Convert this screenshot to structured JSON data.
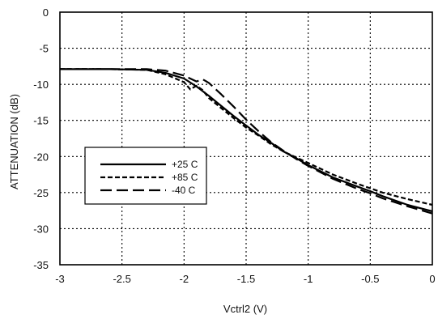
{
  "chart_data": {
    "type": "line",
    "title": "",
    "xlabel": "Vctrl2 (V)",
    "ylabel": "ATTENUATION (dB)",
    "xlim": [
      -3,
      0
    ],
    "ylim": [
      -35,
      0
    ],
    "xticks": [
      -3,
      -2.5,
      -2,
      -1.5,
      -1,
      -0.5,
      0
    ],
    "xtick_labels": [
      "-3",
      "-2.5",
      "-2",
      "-1.5",
      "-1",
      "-0.5",
      "0"
    ],
    "yticks": [
      0,
      -5,
      -10,
      -15,
      -20,
      -25,
      -30,
      -35
    ],
    "ytick_labels": [
      "0",
      "-5",
      "-10",
      "-15",
      "-20",
      "-25",
      "-30",
      "-35"
    ],
    "grid": true,
    "grid_style": "dotted",
    "legend_position": "left-middle",
    "series": [
      {
        "name": "+25 C",
        "dash": "solid",
        "x": [
          -3,
          -2.6,
          -2.3,
          -2.15,
          -2.0,
          -1.9,
          -1.8,
          -1.7,
          -1.6,
          -1.5,
          -1.4,
          -1.3,
          -1.2,
          -1.1,
          -1.0,
          -0.8,
          -0.6,
          -0.5,
          -0.4,
          -0.2,
          0
        ],
        "y": [
          -7.9,
          -7.9,
          -8.0,
          -8.4,
          -9.2,
          -10.3,
          -11.6,
          -13.0,
          -14.4,
          -15.7,
          -17.0,
          -18.1,
          -19.3,
          -20.2,
          -21.2,
          -22.9,
          -24.2,
          -24.8,
          -25.5,
          -26.7,
          -27.6
        ]
      },
      {
        "name": "+85 C",
        "dash": "short",
        "x": [
          -3,
          -2.6,
          -2.3,
          -2.15,
          -2.0,
          -1.95,
          -1.9,
          -1.85,
          -1.8,
          -1.7,
          -1.6,
          -1.5,
          -1.4,
          -1.3,
          -1.2,
          -1.1,
          -1.0,
          -0.8,
          -0.6,
          -0.5,
          -0.4,
          -0.2,
          0
        ],
        "y": [
          -7.9,
          -7.9,
          -8.0,
          -8.6,
          -9.7,
          -10.7,
          -10.2,
          -10.8,
          -11.9,
          -13.3,
          -14.7,
          -16.0,
          -17.1,
          -18.3,
          -19.3,
          -20.1,
          -20.9,
          -22.5,
          -23.8,
          -24.4,
          -25.0,
          -25.9,
          -26.7
        ]
      },
      {
        "name": "-40 C",
        "dash": "long",
        "x": [
          -3,
          -2.6,
          -2.3,
          -2.15,
          -2.0,
          -1.9,
          -1.85,
          -1.8,
          -1.7,
          -1.6,
          -1.5,
          -1.4,
          -1.3,
          -1.2,
          -1.1,
          -1.0,
          -0.8,
          -0.6,
          -0.5,
          -0.4,
          -0.2,
          0
        ],
        "y": [
          -7.9,
          -7.9,
          -7.9,
          -8.1,
          -8.8,
          -9.6,
          -9.3,
          -9.8,
          -11.4,
          -13.1,
          -14.9,
          -16.5,
          -18.0,
          -19.2,
          -20.3,
          -21.3,
          -23.1,
          -24.5,
          -25.1,
          -25.8,
          -26.9,
          -27.9
        ]
      }
    ]
  }
}
